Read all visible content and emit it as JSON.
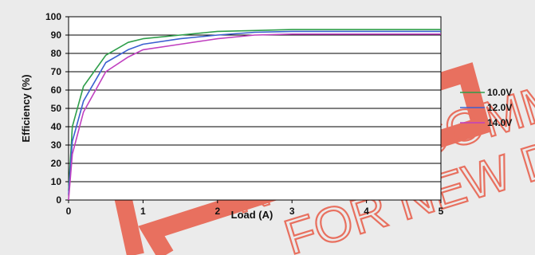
{
  "chart_data": {
    "type": "line",
    "title": "",
    "xlabel": "Load (A)",
    "ylabel": "Efficiency (%)",
    "xlim": [
      0,
      5
    ],
    "ylim": [
      0,
      100
    ],
    "x_ticks": [
      "0",
      "1",
      "2",
      "3",
      "4",
      "5"
    ],
    "y_ticks": [
      "0",
      "10",
      "20",
      "30",
      "40",
      "50",
      "60",
      "70",
      "80",
      "90",
      "100"
    ],
    "grid": "horizontal",
    "legend_position": "right",
    "series": [
      {
        "name": "10.0V",
        "color": "#2e9e4a",
        "x": [
          0,
          0.05,
          0.2,
          0.5,
          0.8,
          1.0,
          1.5,
          2.0,
          2.5,
          3.0,
          4.0,
          5.0
        ],
        "y": [
          5,
          40,
          62,
          79,
          86,
          88,
          90,
          92,
          92.5,
          93,
          93,
          93
        ]
      },
      {
        "name": "12.0V",
        "color": "#3b5fd0",
        "x": [
          0,
          0.05,
          0.2,
          0.5,
          0.8,
          1.0,
          1.5,
          2.0,
          2.5,
          3.0,
          4.0,
          5.0
        ],
        "y": [
          3,
          32,
          54,
          75,
          82,
          85,
          88,
          90,
          91.5,
          92,
          92,
          92
        ]
      },
      {
        "name": "14.0V",
        "color": "#c040c0",
        "x": [
          0,
          0.05,
          0.2,
          0.5,
          0.8,
          1.0,
          1.5,
          2.0,
          2.5,
          3.0,
          4.0,
          5.0
        ],
        "y": [
          0,
          25,
          48,
          70,
          78,
          82,
          85,
          88,
          90,
          90.5,
          90.5,
          90.5
        ]
      }
    ]
  },
  "watermark": {
    "line1": "NOT RECOMM",
    "line2": "FOR NEW DE",
    "color": "#e8705f"
  }
}
